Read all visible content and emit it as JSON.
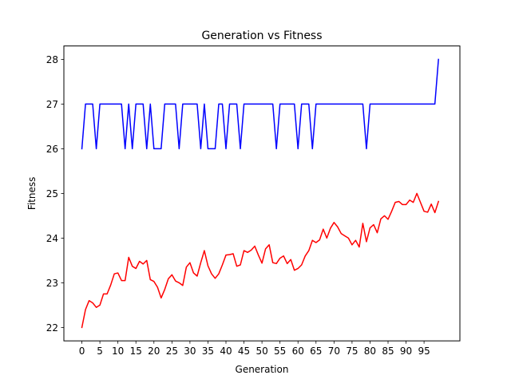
{
  "chart_data": {
    "type": "line",
    "title": "Generation vs Fitness",
    "xlabel": "Generation",
    "ylabel": "Fitness",
    "xlim": [
      -5,
      104.95
    ],
    "ylim": [
      21.7,
      28.3
    ],
    "xticks": [
      0,
      5,
      10,
      15,
      20,
      25,
      30,
      35,
      40,
      45,
      50,
      55,
      60,
      65,
      70,
      75,
      80,
      85,
      90,
      95
    ],
    "yticks": [
      22,
      23,
      24,
      25,
      26,
      27,
      28
    ],
    "grid": false,
    "legend": "none",
    "x": [
      0,
      1,
      2,
      3,
      4,
      5,
      6,
      7,
      8,
      9,
      10,
      11,
      12,
      13,
      14,
      15,
      16,
      17,
      18,
      19,
      20,
      21,
      22,
      23,
      24,
      25,
      26,
      27,
      28,
      29,
      30,
      31,
      32,
      33,
      34,
      35,
      36,
      37,
      38,
      39,
      40,
      41,
      42,
      43,
      44,
      45,
      46,
      47,
      48,
      49,
      50,
      51,
      52,
      53,
      54,
      55,
      56,
      57,
      58,
      59,
      60,
      61,
      62,
      63,
      64,
      65,
      66,
      67,
      68,
      69,
      70,
      71,
      72,
      73,
      74,
      75,
      76,
      77,
      78,
      79,
      80,
      81,
      82,
      83,
      84,
      85,
      86,
      87,
      88,
      89,
      90,
      91,
      92,
      93,
      94,
      95,
      96,
      97,
      98,
      99
    ],
    "series": [
      {
        "color": "#0000ff",
        "values": [
          26,
          27,
          27,
          27,
          26,
          27,
          27,
          27,
          27,
          27,
          27,
          27,
          26,
          27,
          26,
          27,
          27,
          27,
          26,
          27,
          26,
          26,
          26,
          27,
          27,
          27,
          27,
          26,
          27,
          27,
          27,
          27,
          27,
          26,
          27,
          26,
          26,
          26,
          27,
          27,
          26,
          27,
          27,
          27,
          26,
          27,
          27,
          27,
          27,
          27,
          27,
          27,
          27,
          27,
          26,
          27,
          27,
          27,
          27,
          27,
          26,
          27,
          27,
          27,
          26,
          27,
          27,
          27,
          27,
          27,
          27,
          27,
          27,
          27,
          27,
          27,
          27,
          27,
          27,
          26,
          27,
          27,
          27,
          27,
          27,
          27,
          27,
          27,
          27,
          27,
          27,
          27,
          27,
          27,
          27,
          27,
          27,
          27,
          27,
          28
        ]
      },
      {
        "color": "#ff0000",
        "values": [
          22.0,
          22.4,
          22.6,
          22.55,
          22.45,
          22.5,
          22.75,
          22.75,
          22.95,
          23.2,
          23.22,
          23.05,
          23.05,
          23.57,
          23.37,
          23.32,
          23.48,
          23.42,
          23.5,
          23.07,
          23.03,
          22.9,
          22.66,
          22.85,
          23.09,
          23.18,
          23.04,
          23.0,
          22.94,
          23.35,
          23.45,
          23.22,
          23.15,
          23.45,
          23.72,
          23.38,
          23.2,
          23.1,
          23.2,
          23.4,
          23.62,
          23.63,
          23.65,
          23.37,
          23.4,
          23.72,
          23.68,
          23.73,
          23.82,
          23.62,
          23.44,
          23.76,
          23.85,
          23.45,
          23.43,
          23.55,
          23.6,
          23.43,
          23.52,
          23.28,
          23.32,
          23.4,
          23.6,
          23.72,
          23.95,
          23.9,
          23.96,
          24.2,
          24.0,
          24.22,
          24.35,
          24.25,
          24.1,
          24.05,
          24.0,
          23.85,
          23.95,
          23.8,
          24.33,
          23.92,
          24.23,
          24.3,
          24.12,
          24.43,
          24.5,
          24.42,
          24.6,
          24.8,
          24.82,
          24.75,
          24.75,
          24.85,
          24.8,
          25.0,
          24.8,
          24.6,
          24.58,
          24.76,
          24.57,
          24.82
        ]
      }
    ]
  }
}
